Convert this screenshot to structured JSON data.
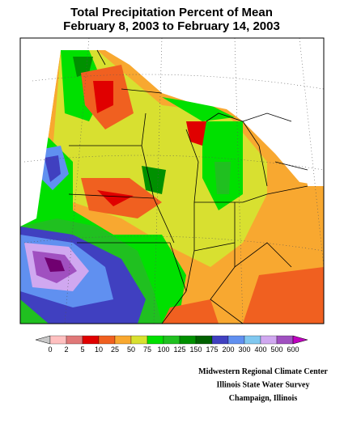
{
  "header": {
    "title_line1": "Total Precipitation Percent of Mean",
    "title_line2": "February 8, 2003 to February 14, 2003"
  },
  "legend": {
    "labels": [
      0,
      2,
      5,
      10,
      25,
      50,
      75,
      100,
      125,
      150,
      175,
      200,
      300,
      400,
      500,
      600
    ],
    "colors": [
      "#c8c8c8",
      "#ffc0c0",
      "#e07878",
      "#e00000",
      "#f06020",
      "#f8a830",
      "#d8e030",
      "#00e000",
      "#20c020",
      "#009000",
      "#006000",
      "#4040c0",
      "#6090f0",
      "#80c8f0",
      "#d0a8f0",
      "#a050c0",
      "#700070",
      "#c000c0"
    ]
  },
  "credits": [
    "Midwestern Regional Climate Center",
    "Illinois State Water Survey",
    "Champaign, Illinois"
  ]
}
